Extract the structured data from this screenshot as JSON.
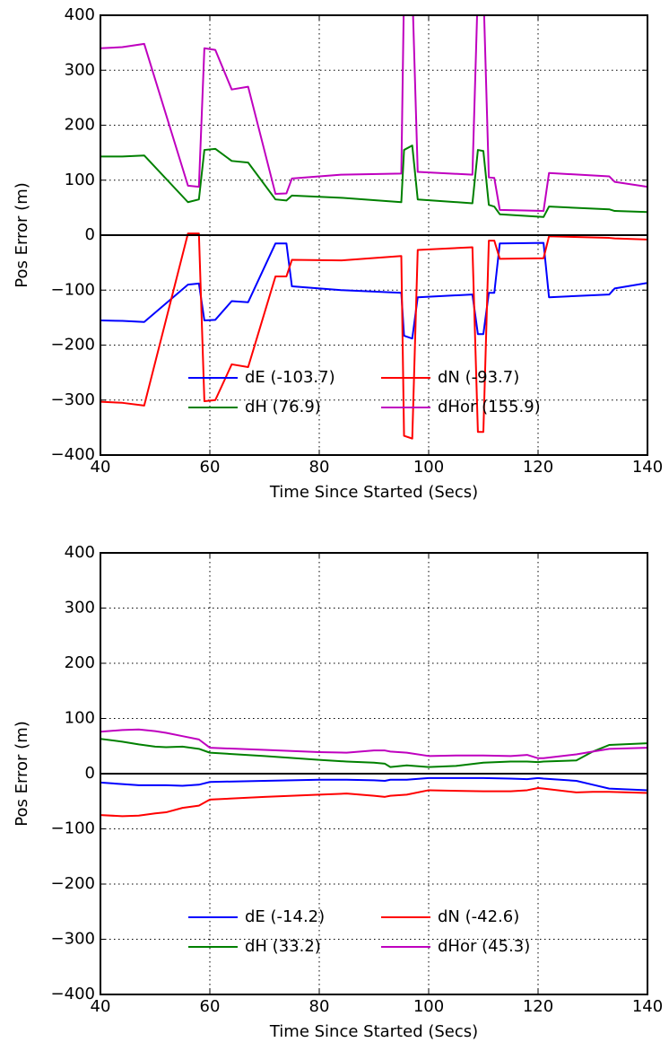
{
  "chart_data": [
    {
      "type": "line",
      "xlabel": "Time Since Started (Secs)",
      "ylabel": "Pos Error (m)",
      "x": [
        40,
        44,
        48,
        56,
        58,
        59,
        61,
        64,
        67,
        72,
        74,
        75,
        84,
        95,
        95.5,
        97,
        98,
        108,
        109,
        110,
        111,
        112,
        113,
        121,
        122,
        133,
        134,
        140
      ],
      "series": [
        {
          "name": "dE (-103.7)",
          "color": "#0000ff",
          "values": [
            -155,
            -156,
            -158,
            -90,
            -88,
            -155,
            -154,
            -120,
            -122,
            -15,
            -15,
            -93,
            -100,
            -105,
            -183,
            -188,
            -113,
            -108,
            -180,
            -180,
            -105,
            -105,
            -15,
            -14,
            -113,
            -108,
            -97,
            -87
          ]
        },
        {
          "name": "dN (-93.7)",
          "color": "#ff0000",
          "values": [
            -303,
            -305,
            -310,
            3,
            3,
            -302,
            -300,
            -235,
            -240,
            -75,
            -75,
            -45,
            -46,
            -38,
            -365,
            -370,
            -27,
            -22,
            -358,
            -358,
            -10,
            -10,
            -43,
            -42,
            -2,
            -5,
            -6,
            -8
          ]
        },
        {
          "name": "dH (76.9)",
          "color": "#008000",
          "values": [
            143,
            143,
            145,
            60,
            65,
            155,
            157,
            135,
            132,
            65,
            63,
            72,
            68,
            60,
            155,
            163,
            65,
            58,
            155,
            153,
            55,
            52,
            38,
            33,
            52,
            47,
            44,
            42
          ]
        },
        {
          "name": "dHor (155.9)",
          "color": "#bf00bf",
          "values": [
            340,
            342,
            348,
            90,
            88,
            340,
            337,
            265,
            270,
            75,
            76,
            103,
            110,
            112,
            450,
            450,
            115,
            110,
            450,
            450,
            105,
            104,
            46,
            44,
            113,
            107,
            97,
            88
          ]
        }
      ],
      "xlim": [
        40,
        140
      ],
      "ylim": [
        -400,
        400
      ],
      "xticks": [
        40,
        60,
        80,
        100,
        120,
        140
      ],
      "yticks": [
        {
          "value": -400,
          "label": "−400"
        },
        {
          "value": -300,
          "label": "−300"
        },
        {
          "value": -200,
          "label": "−200"
        },
        {
          "value": -100,
          "label": "−100"
        },
        0,
        100,
        200,
        300,
        400
      ],
      "grid": true,
      "hline": 0,
      "legend": "lower center"
    },
    {
      "type": "line",
      "xlabel": "Time Since Started (Secs)",
      "ylabel": "Pos Error (m)",
      "x": [
        40,
        44,
        47,
        50,
        52,
        55,
        58,
        60,
        70,
        80,
        85,
        90,
        92,
        93,
        96,
        100,
        105,
        110,
        115,
        118,
        120,
        121,
        127,
        130,
        133,
        140
      ],
      "series": [
        {
          "name": "dE (-14.2)",
          "color": "#0000ff",
          "values": [
            -16,
            -19,
            -21,
            -21,
            -21,
            -22,
            -20,
            -15,
            -13,
            -11,
            -11,
            -12,
            -13,
            -11,
            -11,
            -8,
            -8,
            -8,
            -9,
            -10,
            -8,
            -9,
            -13,
            -20,
            -27,
            -30
          ]
        },
        {
          "name": "dN (-42.6)",
          "color": "#ff0000",
          "values": [
            -75,
            -77,
            -76,
            -72,
            -70,
            -62,
            -58,
            -47,
            -42,
            -38,
            -36,
            -40,
            -42,
            -40,
            -38,
            -30,
            -31,
            -32,
            -32,
            -30,
            -26,
            -27,
            -34,
            -33,
            -33,
            -35
          ]
        },
        {
          "name": "dH (33.2)",
          "color": "#008000",
          "values": [
            63,
            58,
            53,
            49,
            48,
            49,
            45,
            38,
            32,
            25,
            22,
            20,
            18,
            12,
            15,
            12,
            14,
            20,
            22,
            22,
            21,
            22,
            24,
            40,
            52,
            55
          ]
        },
        {
          "name": "dHor (45.3)",
          "color": "#bf00bf",
          "values": [
            76,
            79,
            80,
            77,
            74,
            68,
            62,
            47,
            43,
            39,
            38,
            42,
            42,
            40,
            38,
            32,
            33,
            33,
            32,
            34,
            28,
            28,
            35,
            40,
            45,
            47
          ]
        }
      ],
      "xlim": [
        40,
        140
      ],
      "ylim": [
        -400,
        400
      ],
      "xticks": [
        40,
        60,
        80,
        100,
        120,
        140
      ],
      "yticks": [
        {
          "value": -400,
          "label": "−400"
        },
        {
          "value": -300,
          "label": "−300"
        },
        {
          "value": -200,
          "label": "−200"
        },
        {
          "value": -100,
          "label": "−100"
        },
        0,
        100,
        200,
        300,
        400
      ],
      "grid": true,
      "hline": 0,
      "legend": "lower center"
    }
  ]
}
